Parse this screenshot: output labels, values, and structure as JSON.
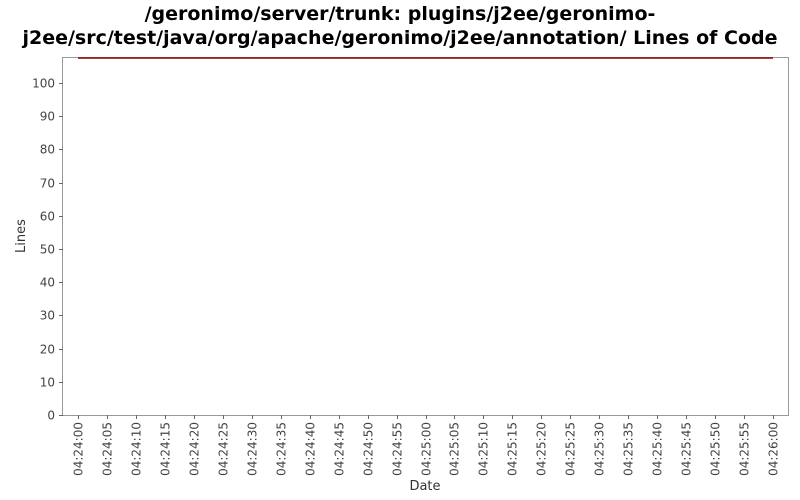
{
  "chart_data": {
    "type": "line",
    "title_lines": [
      "/geronimo/server/trunk: plugins/j2ee/geronimo-",
      "j2ee/src/test/java/org/apache/geronimo/j2ee/annotation/ Lines of Code"
    ],
    "xlabel": "Date",
    "ylabel": "Lines",
    "ylim": [
      0,
      107.5
    ],
    "yticks": [
      0,
      10,
      20,
      30,
      40,
      50,
      60,
      70,
      80,
      90,
      100
    ],
    "xticks": [
      "04:24:00",
      "04:24:05",
      "04:24:10",
      "04:24:15",
      "04:24:20",
      "04:24:25",
      "04:24:30",
      "04:24:35",
      "04:24:40",
      "04:24:45",
      "04:24:50",
      "04:24:55",
      "04:25:00",
      "04:25:05",
      "04:25:10",
      "04:25:15",
      "04:25:20",
      "04:25:25",
      "04:25:30",
      "04:25:35",
      "04:25:40",
      "04:25:45",
      "04:25:50",
      "04:25:55",
      "04:26:00"
    ],
    "grid": false,
    "series": [
      {
        "x": [
          "04:24:00",
          "04:26:00"
        ],
        "values": [
          107.5,
          107.5
        ],
        "color": "#8b0000"
      }
    ]
  }
}
